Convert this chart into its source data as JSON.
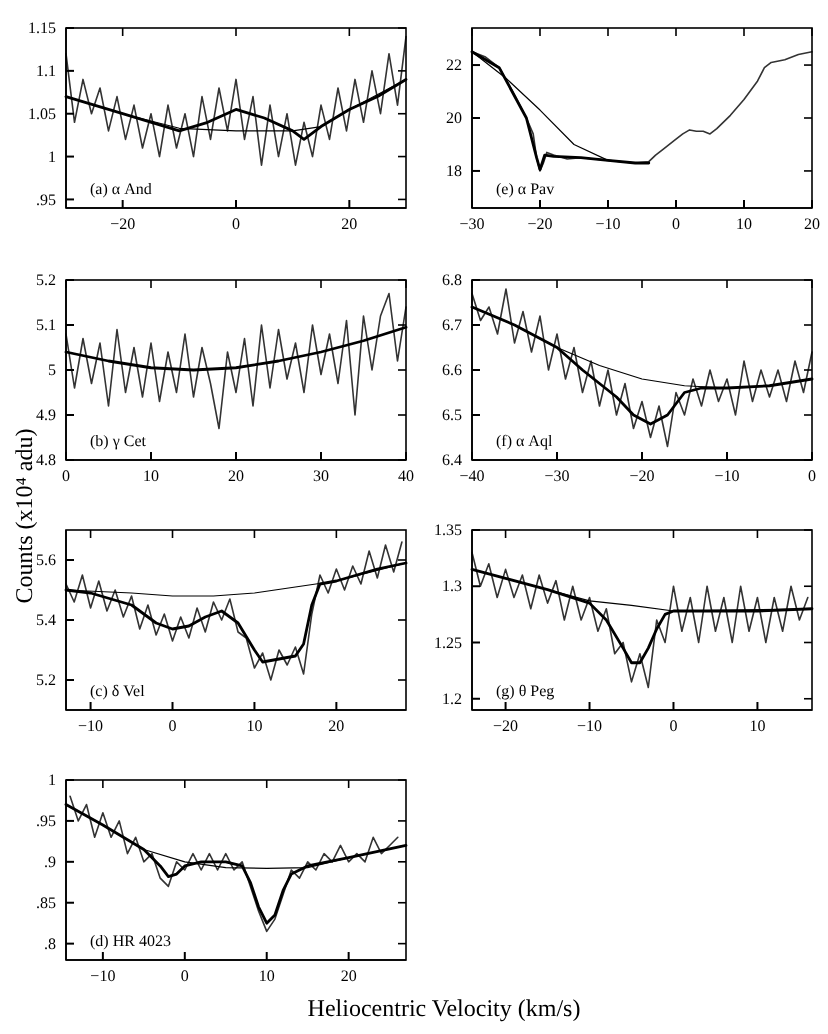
{
  "chart_data": [
    {
      "type": "line",
      "xlim": [
        -30,
        30
      ],
      "xticks": [
        -20,
        0,
        20
      ],
      "ylim": [
        0.94,
        1.15
      ],
      "yticks": [
        {
          "value": 0.95,
          "label": ".95"
        },
        1,
        1.05,
        1.1,
        1.15
      ],
      "annotations": [
        "(a) α And"
      ],
      "series": [
        {
          "color": "#333333",
          "x": [
            -30,
            -28.5,
            -27,
            -25.5,
            -24,
            -22.5,
            -21,
            -19.5,
            -18,
            -16.5,
            -15,
            -13.5,
            -12,
            -10.5,
            -9,
            -7.5,
            -6,
            -4.5,
            -3,
            -1.5,
            0,
            1.5,
            3,
            4.5,
            6,
            7.5,
            9,
            10.5,
            12,
            13.5,
            15,
            16.5,
            18,
            19.5,
            21,
            22.5,
            24,
            25.5,
            27,
            28.5,
            30
          ],
          "values": [
            1.12,
            1.04,
            1.09,
            1.05,
            1.08,
            1.03,
            1.07,
            1.02,
            1.06,
            1.01,
            1.05,
            1.0,
            1.06,
            1.01,
            1.05,
            1.0,
            1.07,
            1.02,
            1.08,
            1.03,
            1.09,
            1.02,
            1.07,
            0.99,
            1.06,
            1.0,
            1.05,
            0.99,
            1.04,
            1.0,
            1.06,
            1.02,
            1.08,
            1.03,
            1.09,
            1.04,
            1.1,
            1.05,
            1.12,
            1.06,
            1.14
          ]
        },
        {
          "color": "#000000",
          "x": [
            -30,
            -20,
            -10,
            -5,
            0,
            5,
            10,
            12,
            15,
            20,
            25,
            30
          ],
          "values": [
            1.07,
            1.05,
            1.03,
            1.04,
            1.055,
            1.045,
            1.03,
            1.02,
            1.035,
            1.055,
            1.07,
            1.09
          ]
        },
        {
          "color": "#000000",
          "x": [
            -30,
            -20,
            -10,
            0,
            10,
            15,
            20,
            30
          ],
          "values": [
            1.07,
            1.05,
            1.033,
            1.03,
            1.03,
            1.035,
            1.055,
            1.09
          ]
        }
      ]
    },
    {
      "type": "line",
      "xlim": [
        0,
        40
      ],
      "xticks": [
        0,
        10,
        20,
        30,
        40
      ],
      "ylim": [
        4.8,
        5.2
      ],
      "yticks": [
        4.8,
        4.9,
        5,
        5.1,
        5.2
      ],
      "annotations": [
        "(b) γ Cet"
      ],
      "series": [
        {
          "color": "#333333",
          "x": [
            0,
            1,
            2,
            3,
            4,
            5,
            6,
            7,
            8,
            9,
            10,
            11,
            12,
            13,
            14,
            15,
            16,
            17,
            18,
            19,
            20,
            21,
            22,
            23,
            24,
            25,
            26,
            27,
            28,
            29,
            30,
            31,
            32,
            33,
            34,
            35,
            36,
            37,
            38,
            39,
            40
          ],
          "values": [
            5.08,
            4.96,
            5.07,
            4.97,
            5.06,
            4.92,
            5.09,
            4.95,
            5.05,
            4.94,
            5.06,
            4.93,
            5.04,
            4.95,
            5.08,
            4.94,
            5.05,
            4.97,
            4.87,
            5.04,
            4.95,
            5.07,
            4.92,
            5.1,
            4.96,
            5.09,
            4.98,
            5.06,
            4.95,
            5.1,
            4.99,
            5.08,
            4.97,
            5.11,
            4.9,
            5.12,
            5.0,
            5.12,
            5.17,
            5.02,
            5.14
          ]
        },
        {
          "color": "#000000",
          "x": [
            0,
            5,
            10,
            15,
            20,
            25,
            30,
            35,
            40
          ],
          "values": [
            5.04,
            5.02,
            5.005,
            5.0,
            5.005,
            5.02,
            5.04,
            5.065,
            5.095
          ]
        }
      ]
    },
    {
      "type": "line",
      "xlim": [
        -13,
        28.5
      ],
      "xticks": [
        -10,
        0,
        10,
        20
      ],
      "ylim": [
        5.1,
        5.7
      ],
      "yticks": [
        5.2,
        5.4,
        5.6
      ],
      "ylabel": "Counts (x10⁴ adu)",
      "annotations": [
        "(c) δ Vel"
      ],
      "series": [
        {
          "color": "#333333",
          "x": [
            -13,
            -12,
            -11,
            -10,
            -9,
            -8,
            -7,
            -6,
            -5,
            -4,
            -3,
            -2,
            -1,
            0,
            1,
            2,
            3,
            4,
            5,
            6,
            7,
            8,
            9,
            10,
            11,
            12,
            13,
            14,
            15,
            16,
            17,
            18,
            19,
            20,
            21,
            22,
            23,
            24,
            25,
            26,
            27,
            28
          ],
          "values": [
            5.52,
            5.46,
            5.55,
            5.44,
            5.53,
            5.43,
            5.5,
            5.41,
            5.48,
            5.37,
            5.45,
            5.35,
            5.42,
            5.33,
            5.41,
            5.34,
            5.44,
            5.36,
            5.46,
            5.4,
            5.47,
            5.36,
            5.34,
            5.24,
            5.29,
            5.2,
            5.3,
            5.25,
            5.31,
            5.22,
            5.42,
            5.55,
            5.49,
            5.57,
            5.5,
            5.58,
            5.52,
            5.63,
            5.54,
            5.65,
            5.56,
            5.66
          ]
        },
        {
          "color": "#000000",
          "x": [
            -13,
            -10,
            -5,
            -2,
            0,
            2,
            4,
            6,
            8,
            10,
            11,
            13,
            15,
            16,
            17,
            18,
            20,
            25,
            28.5
          ],
          "values": [
            5.5,
            5.49,
            5.45,
            5.39,
            5.37,
            5.38,
            5.41,
            5.43,
            5.39,
            5.3,
            5.26,
            5.27,
            5.28,
            5.32,
            5.45,
            5.52,
            5.53,
            5.57,
            5.59
          ]
        },
        {
          "color": "#000000",
          "x": [
            -13,
            -5,
            0,
            5,
            10,
            15,
            20,
            28.5
          ],
          "values": [
            5.5,
            5.49,
            5.48,
            5.48,
            5.49,
            5.51,
            5.53,
            5.59
          ]
        }
      ]
    },
    {
      "type": "line",
      "xlim": [
        -14.5,
        27
      ],
      "xticks": [
        -10,
        0,
        10,
        20
      ],
      "ylim": [
        0.78,
        1
      ],
      "yticks": [
        {
          "value": 0.8,
          "label": ".8"
        },
        {
          "value": 0.85,
          "label": ".85"
        },
        {
          "value": 0.9,
          "label": ".9"
        },
        {
          "value": 0.95,
          "label": ".95"
        },
        1
      ],
      "xlabel": "Heliocentric Velocity (km/s)",
      "annotations": [
        "(d) HR 4023"
      ],
      "series": [
        {
          "color": "#333333",
          "x": [
            -14,
            -13,
            -12,
            -11,
            -10,
            -9,
            -8,
            -7,
            -6,
            -5,
            -4,
            -3,
            -2,
            -1,
            0,
            1,
            2,
            3,
            4,
            5,
            6,
            7,
            8,
            9,
            10,
            11,
            12,
            13,
            14,
            15,
            16,
            17,
            18,
            19,
            20,
            21,
            22,
            23,
            24,
            25,
            26
          ],
          "values": [
            0.98,
            0.95,
            0.97,
            0.93,
            0.96,
            0.93,
            0.95,
            0.91,
            0.93,
            0.9,
            0.91,
            0.88,
            0.87,
            0.9,
            0.89,
            0.91,
            0.89,
            0.91,
            0.89,
            0.91,
            0.89,
            0.9,
            0.87,
            0.84,
            0.815,
            0.83,
            0.86,
            0.89,
            0.88,
            0.9,
            0.89,
            0.91,
            0.9,
            0.92,
            0.9,
            0.91,
            0.9,
            0.93,
            0.91,
            0.92,
            0.93
          ]
        },
        {
          "color": "#000000",
          "x": [
            -14.5,
            -10,
            -5,
            -3,
            -2,
            -1,
            0,
            2,
            5,
            7,
            8,
            9,
            10,
            11,
            12,
            13,
            15,
            20,
            27
          ],
          "values": [
            0.97,
            0.945,
            0.915,
            0.895,
            0.882,
            0.885,
            0.895,
            0.9,
            0.9,
            0.895,
            0.875,
            0.845,
            0.825,
            0.835,
            0.865,
            0.885,
            0.895,
            0.905,
            0.92
          ]
        },
        {
          "color": "#000000",
          "x": [
            -14.5,
            -10,
            -5,
            0,
            5,
            10,
            15,
            20,
            27
          ],
          "values": [
            0.97,
            0.945,
            0.915,
            0.9,
            0.893,
            0.892,
            0.893,
            0.905,
            0.92
          ]
        }
      ]
    },
    {
      "type": "line",
      "xlim": [
        -30,
        20
      ],
      "xticks": [
        -30,
        -20,
        -10,
        0,
        10,
        20
      ],
      "ylim": [
        16.6,
        23.4
      ],
      "yticks": [
        18,
        20,
        22
      ],
      "annotations": [
        "(e) α Pav"
      ],
      "series": [
        {
          "color": "#333333",
          "x": [
            -30,
            -28,
            -26,
            -24,
            -22,
            -21,
            -20.5,
            -20,
            -19.5,
            -19,
            -18,
            -16,
            -14,
            -12,
            -10,
            -8,
            -6,
            -4,
            -3,
            -2,
            0,
            1,
            2,
            3,
            4,
            5,
            6,
            8,
            10,
            12,
            13,
            14,
            16,
            18,
            20
          ],
          "values": [
            22.5,
            22.3,
            21.9,
            21.0,
            20.0,
            19.4,
            18.5,
            18.0,
            18.3,
            18.7,
            18.6,
            18.45,
            18.5,
            18.45,
            18.4,
            18.35,
            18.3,
            18.35,
            18.6,
            18.8,
            19.2,
            19.4,
            19.55,
            19.5,
            19.5,
            19.4,
            19.6,
            20.1,
            20.7,
            21.4,
            21.9,
            22.1,
            22.2,
            22.4,
            22.5
          ]
        },
        {
          "color": "#000000",
          "x": [
            -30,
            -26,
            -22,
            -20.5,
            -20,
            -19.3,
            -18,
            -14,
            -10,
            -6,
            -4
          ],
          "values": [
            22.5,
            21.9,
            20.0,
            18.5,
            18.05,
            18.6,
            18.55,
            18.5,
            18.4,
            18.3,
            18.3
          ]
        },
        {
          "color": "#000000",
          "x": [
            -30,
            -25,
            -20,
            -15,
            -10,
            -6,
            -4
          ],
          "values": [
            22.5,
            21.5,
            20.3,
            19.0,
            18.4,
            18.3,
            18.3
          ]
        }
      ]
    },
    {
      "type": "line",
      "xlim": [
        -40,
        0
      ],
      "xticks": [
        -40,
        -30,
        -20,
        -10,
        0
      ],
      "ylim": [
        6.4,
        6.8
      ],
      "yticks": [
        6.4,
        6.5,
        6.6,
        6.7,
        6.8
      ],
      "annotations": [
        "(f) α Aql"
      ],
      "series": [
        {
          "color": "#333333",
          "x": [
            -40,
            -39,
            -38,
            -37,
            -36,
            -35,
            -34,
            -33,
            -32,
            -31,
            -30,
            -29,
            -28,
            -27,
            -26,
            -25,
            -24,
            -23,
            -22,
            -21,
            -20,
            -19,
            -18,
            -17,
            -16,
            -15,
            -14,
            -13,
            -12,
            -11,
            -10,
            -9,
            -8,
            -7,
            -6,
            -5,
            -4,
            -3,
            -2,
            -1,
            0
          ],
          "values": [
            6.77,
            6.71,
            6.74,
            6.68,
            6.78,
            6.66,
            6.73,
            6.64,
            6.72,
            6.6,
            6.68,
            6.58,
            6.65,
            6.55,
            6.62,
            6.52,
            6.6,
            6.5,
            6.57,
            6.47,
            6.53,
            6.45,
            6.52,
            6.43,
            6.55,
            6.5,
            6.58,
            6.52,
            6.6,
            6.53,
            6.58,
            6.5,
            6.62,
            6.53,
            6.6,
            6.54,
            6.6,
            6.53,
            6.62,
            6.55,
            6.64
          ]
        },
        {
          "color": "#000000",
          "x": [
            -40,
            -35,
            -30,
            -27,
            -25,
            -23,
            -21,
            -19,
            -17,
            -15,
            -13,
            -10,
            -5,
            0
          ],
          "values": [
            6.74,
            6.7,
            6.65,
            6.6,
            6.57,
            6.54,
            6.5,
            6.48,
            6.5,
            6.55,
            6.56,
            6.56,
            6.565,
            6.58
          ]
        },
        {
          "color": "#000000",
          "x": [
            -40,
            -35,
            -30,
            -25,
            -20,
            -15,
            -10,
            -5,
            0
          ],
          "values": [
            6.74,
            6.7,
            6.65,
            6.61,
            6.58,
            6.565,
            6.56,
            6.565,
            6.58
          ]
        }
      ]
    },
    {
      "type": "line",
      "xlim": [
        -24,
        16.5
      ],
      "xticks": [
        -20,
        -10,
        0,
        10
      ],
      "ylim": [
        1.19,
        1.35
      ],
      "yticks": [
        1.2,
        1.25,
        1.3,
        1.35
      ],
      "annotations": [
        "(g) θ Peg"
      ],
      "series": [
        {
          "color": "#333333",
          "x": [
            -24,
            -23,
            -22,
            -21,
            -20,
            -19,
            -18,
            -17,
            -16,
            -15,
            -14,
            -13,
            -12,
            -11,
            -10,
            -9,
            -8,
            -7,
            -6,
            -5,
            -4,
            -3,
            -2,
            -1,
            0,
            1,
            2,
            3,
            4,
            5,
            6,
            7,
            8,
            9,
            10,
            11,
            12,
            13,
            14,
            15,
            16
          ],
          "values": [
            1.33,
            1.3,
            1.32,
            1.29,
            1.315,
            1.29,
            1.31,
            1.28,
            1.31,
            1.285,
            1.305,
            1.27,
            1.3,
            1.27,
            1.29,
            1.26,
            1.28,
            1.24,
            1.25,
            1.215,
            1.24,
            1.21,
            1.27,
            1.25,
            1.3,
            1.26,
            1.29,
            1.25,
            1.3,
            1.26,
            1.29,
            1.25,
            1.3,
            1.26,
            1.29,
            1.25,
            1.29,
            1.26,
            1.3,
            1.27,
            1.29
          ]
        },
        {
          "color": "#000000",
          "x": [
            -24,
            -20,
            -15,
            -10,
            -8,
            -6,
            -5,
            -4,
            -3,
            -2,
            -1,
            0,
            5,
            10,
            16.5
          ],
          "values": [
            1.315,
            1.307,
            1.297,
            1.285,
            1.27,
            1.245,
            1.232,
            1.232,
            1.245,
            1.262,
            1.275,
            1.278,
            1.278,
            1.278,
            1.28
          ]
        },
        {
          "color": "#000000",
          "x": [
            -24,
            -15,
            -10,
            -5,
            0,
            16.5
          ],
          "values": [
            1.315,
            1.297,
            1.287,
            1.283,
            1.278,
            1.28
          ]
        }
      ]
    }
  ]
}
